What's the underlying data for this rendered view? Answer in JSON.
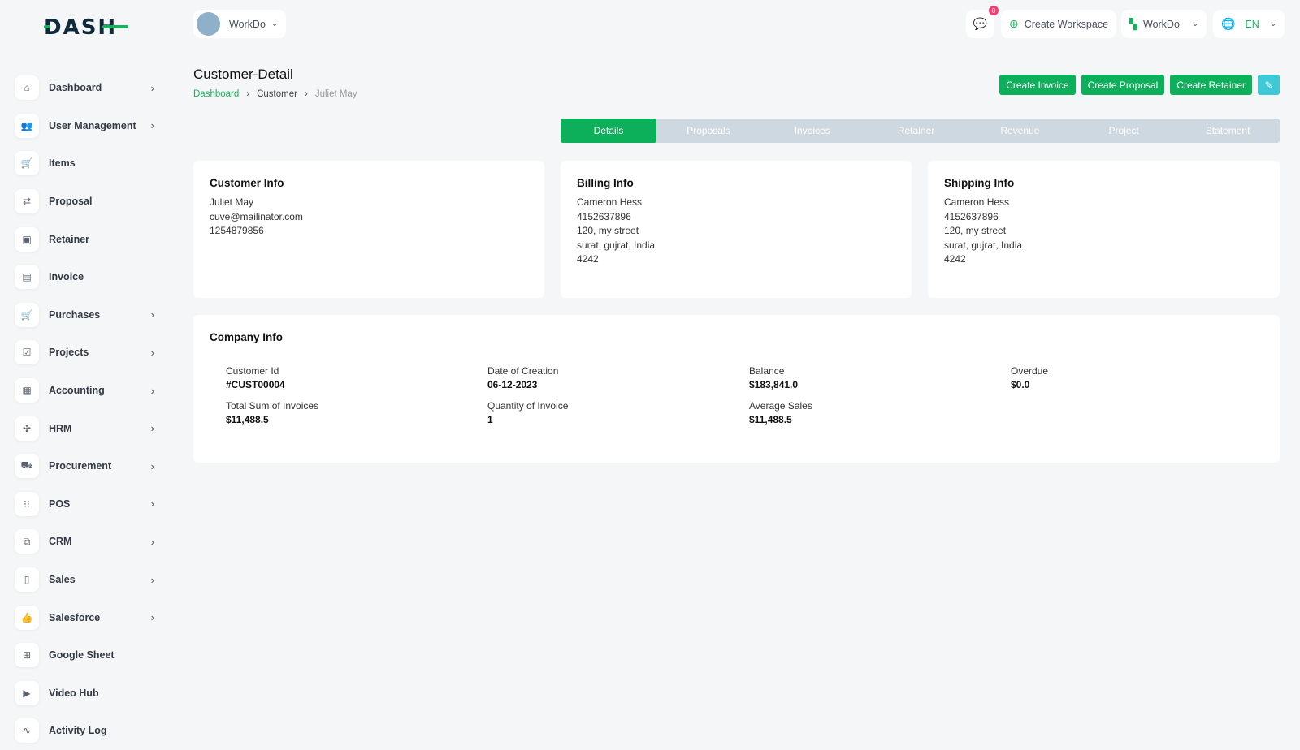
{
  "brand": {
    "logo": "DASH",
    "colors": {
      "accent": "#0caf5a",
      "info": "#3ec9d6"
    }
  },
  "topbar": {
    "workspace": "WorkDo",
    "notifications": "0",
    "create_workspace": "Create Workspace",
    "company": "WorkDo",
    "language": "EN"
  },
  "sidebar": {
    "items": [
      {
        "label": "Dashboard",
        "icon": "home-icon",
        "glyph": "⌂",
        "sub": true
      },
      {
        "label": "User Management",
        "icon": "users-icon",
        "glyph": "👥",
        "sub": true
      },
      {
        "label": "Items",
        "icon": "cart-icon",
        "glyph": "🛒",
        "sub": false
      },
      {
        "label": "Proposal",
        "icon": "proposal-icon",
        "glyph": "⇄",
        "sub": false
      },
      {
        "label": "Retainer",
        "icon": "retainer-icon",
        "glyph": "▣",
        "sub": false
      },
      {
        "label": "Invoice",
        "icon": "invoice-icon",
        "glyph": "▤",
        "sub": false
      },
      {
        "label": "Purchases",
        "icon": "cart-icon",
        "glyph": "🛒",
        "sub": true
      },
      {
        "label": "Projects",
        "icon": "checkbox-icon",
        "glyph": "☑",
        "sub": true
      },
      {
        "label": "Accounting",
        "icon": "grid-icon",
        "glyph": "▦",
        "sub": true
      },
      {
        "label": "HRM",
        "icon": "hrm-icon",
        "glyph": "✣",
        "sub": true
      },
      {
        "label": "Procurement",
        "icon": "procurement-icon",
        "glyph": "⛟",
        "sub": true
      },
      {
        "label": "POS",
        "icon": "pos-grid-icon",
        "glyph": "⁝⁝",
        "sub": true
      },
      {
        "label": "CRM",
        "icon": "crm-icon",
        "glyph": "⧉",
        "sub": true
      },
      {
        "label": "Sales",
        "icon": "file-icon",
        "glyph": "▯",
        "sub": true
      },
      {
        "label": "Salesforce",
        "icon": "thumbs-up-icon",
        "glyph": "👍",
        "sub": true
      },
      {
        "label": "Google Sheet",
        "icon": "table-icon",
        "glyph": "⊞",
        "sub": false
      },
      {
        "label": "Video Hub",
        "icon": "video-icon",
        "glyph": "▶",
        "sub": false
      },
      {
        "label": "Activity Log",
        "icon": "activity-icon",
        "glyph": "∿",
        "sub": false
      }
    ]
  },
  "page": {
    "title": "Customer-Detail",
    "breadcrumb": [
      "Dashboard",
      "Customer",
      "Juliet May"
    ],
    "actions": [
      "Create Invoice",
      "Create Proposal",
      "Create Retainer"
    ],
    "tabs": [
      "Details",
      "Proposals",
      "Invoices",
      "Retainer",
      "Revenue",
      "Project",
      "Statement"
    ],
    "active_tab": "Details"
  },
  "customer_info": {
    "title": "Customer Info",
    "name": "Juliet May",
    "email": "cuve@mailinator.com",
    "phone": "1254879856"
  },
  "billing_info": {
    "title": "Billing Info",
    "name": "Cameron Hess",
    "phone": "4152637896",
    "street": "120, my street",
    "city": "surat, gujrat, India",
    "zip": "4242"
  },
  "shipping_info": {
    "title": "Shipping Info",
    "name": "Cameron Hess",
    "phone": "4152637896",
    "street": "120, my street",
    "city": "surat, gujrat, India",
    "zip": "4242"
  },
  "company_info": {
    "title": "Company Info",
    "fields": [
      {
        "label": "Customer Id",
        "value": "#CUST00004"
      },
      {
        "label": "Date of Creation",
        "value": "06-12-2023"
      },
      {
        "label": "Balance",
        "value": "$183,841.0"
      },
      {
        "label": "Overdue",
        "value": "$0.0"
      },
      {
        "label": "Total Sum of Invoices",
        "value": "$11,488.5"
      },
      {
        "label": "Quantity of Invoice",
        "value": "1"
      },
      {
        "label": "Average Sales",
        "value": "$11,488.5"
      }
    ]
  }
}
